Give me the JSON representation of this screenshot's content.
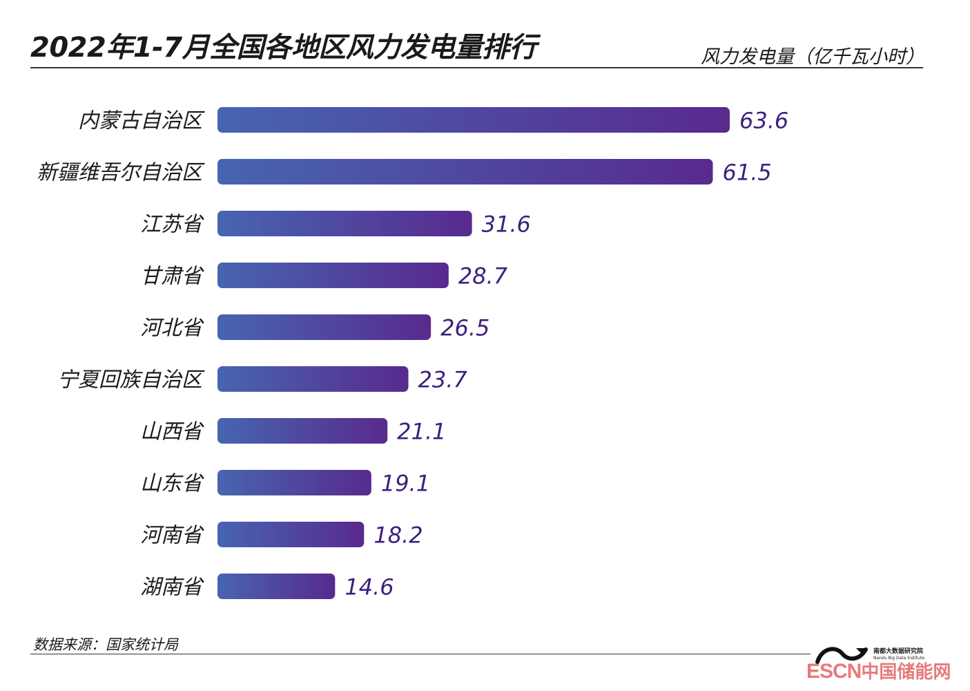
{
  "header": {
    "title": "2022年1-7月全国各地区风力发电量排行",
    "unit_label": "风力发电量（亿千瓦小时）"
  },
  "chart_data": {
    "type": "bar",
    "orientation": "horizontal",
    "categories": [
      "内蒙古自治区",
      "新疆维吾尔自治区",
      "江苏省",
      "甘肃省",
      "河北省",
      "宁夏回族自治区",
      "山西省",
      "山东省",
      "河南省",
      "湖南省"
    ],
    "values": [
      63.6,
      61.5,
      31.6,
      28.7,
      26.5,
      23.7,
      21.1,
      19.1,
      18.2,
      14.6
    ],
    "value_labels": [
      "63.6",
      "61.5",
      "31.6",
      "28.7",
      "26.5",
      "23.7",
      "21.1",
      "19.1",
      "18.2",
      "14.6"
    ],
    "title": "2022年1-7月全国各地区风力发电量排行",
    "xlabel": "风力发电量（亿千瓦小时）",
    "ylabel": "",
    "xlim": [
      0,
      63.6
    ],
    "grid": false,
    "legend": "none",
    "colors": {
      "bar_start": "#4765b0",
      "bar_end": "#582a8e",
      "value_text": "#3c1f7e"
    }
  },
  "footer": {
    "source": "数据来源：国家统计局",
    "logo_name": "南都大数据研究院",
    "logo_sub": "Nandu Big Data Institute",
    "watermark_latin": "ESCN",
    "watermark_cn": "中国储能网"
  }
}
